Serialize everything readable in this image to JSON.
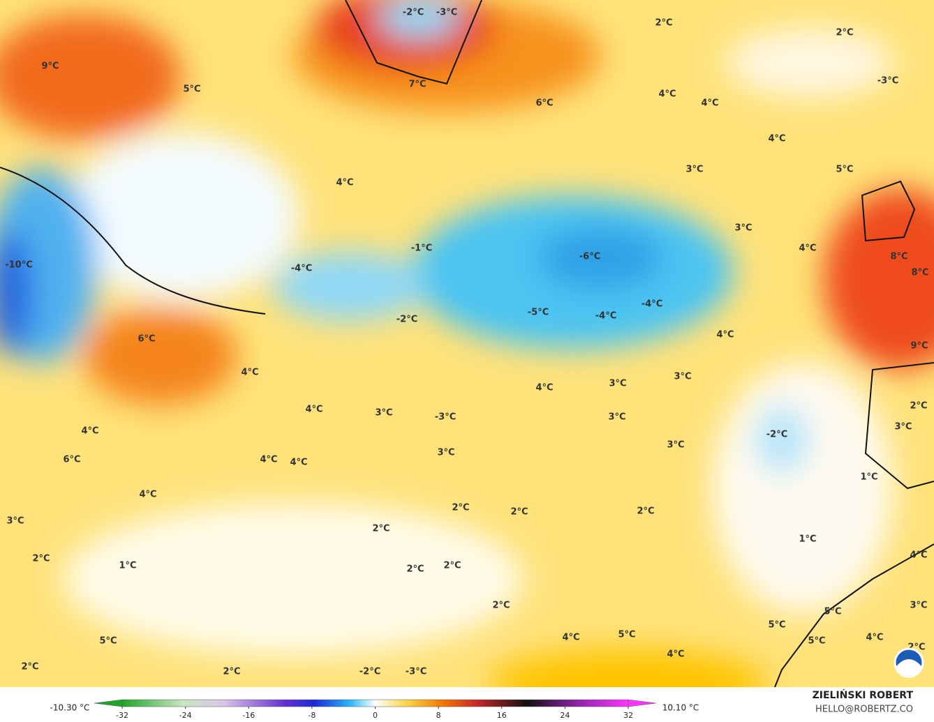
{
  "map": {
    "labels": [
      "-2°C",
      "-3°C",
      "2°C",
      "2°C",
      "9°C",
      "-3°C",
      "5°C",
      "7°C",
      "6°C",
      "4°C",
      "4°C",
      "4°C",
      "3°C",
      "5°C",
      "4°C",
      "3°C",
      "-1°C",
      "4°C",
      "-6°C",
      "-10°C",
      "8°C",
      "-4°C",
      "8°C",
      "-5°C",
      "-4°C",
      "-4°C",
      "-2°C",
      "4°C",
      "6°C",
      "9°C",
      "4°C",
      "3°C",
      "3°C",
      "4°C",
      "2°C",
      "4°C",
      "3°C",
      "-3°C",
      "3°C",
      "3°C",
      "4°C",
      "-2°C",
      "3°C",
      "3°C",
      "6°C",
      "4°C",
      "4°C",
      "1°C",
      "4°C",
      "2°C",
      "2°C",
      "2°C",
      "3°C",
      "2°C",
      "1°C",
      "2°C",
      "4°C",
      "1°C",
      "2°C",
      "2°C",
      "2°C",
      "3°C",
      "5°C",
      "5°C",
      "5°C",
      "4°C",
      "5°C",
      "5°C",
      "4°C",
      "2°C",
      "4°C",
      "2°C",
      "2°C",
      "-2°C",
      "-3°C"
    ]
  },
  "colorbar": {
    "min_label": "-10.30 °C",
    "max_label": "10.10 °C",
    "clim": [
      -32,
      32
    ],
    "ticks": [
      -32,
      -24,
      -16,
      -8,
      0,
      8,
      16,
      24,
      32
    ]
  },
  "credit": {
    "name": "ZIELIŃSKI ROBERT",
    "contact": "HELLO@ROBERTZ.CO"
  }
}
